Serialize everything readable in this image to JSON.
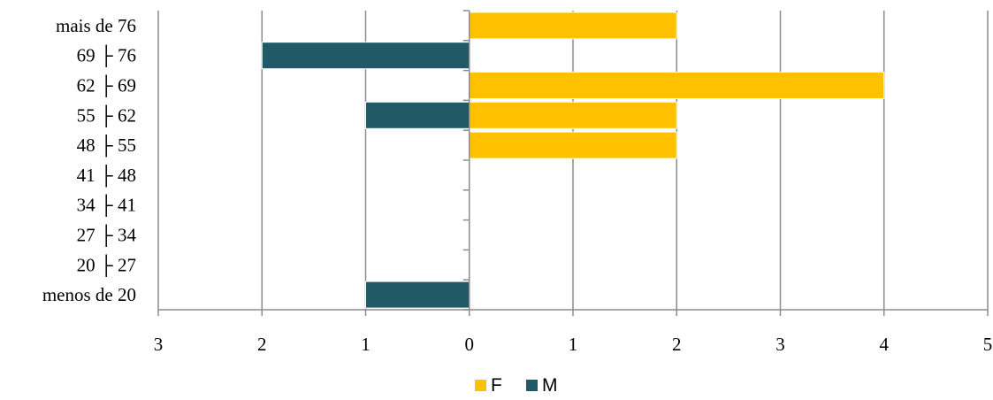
{
  "chart_data": {
    "type": "bar",
    "orientation": "horizontal",
    "layout": "diverging",
    "categories": [
      "mais de 76",
      "69 ├ 76",
      "62 ├ 69",
      "55 ├ 62",
      "48 ├ 55",
      "41 ├ 48",
      "34 ├ 41",
      "27 ├ 34",
      "20 ├ 27",
      "menos de 20"
    ],
    "series": [
      {
        "name": "F",
        "values": [
          2,
          0,
          4,
          2,
          2,
          0,
          0,
          0,
          0,
          0
        ],
        "color": "#ffc000",
        "side": "right"
      },
      {
        "name": "M",
        "values": [
          0,
          2,
          0,
          1,
          0,
          0,
          0,
          0,
          0,
          1
        ],
        "color": "#215967",
        "side": "left"
      }
    ],
    "xlim": [
      -3,
      5
    ],
    "x_tick_values": [
      -3,
      -2,
      -1,
      0,
      1,
      2,
      3,
      4,
      5
    ],
    "x_tick_labels": [
      "3",
      "2",
      "1",
      "0",
      "1",
      "2",
      "3",
      "4",
      "5"
    ],
    "grid": "vertical",
    "legend_position": "bottom",
    "title": "",
    "xlabel": "",
    "ylabel": ""
  }
}
